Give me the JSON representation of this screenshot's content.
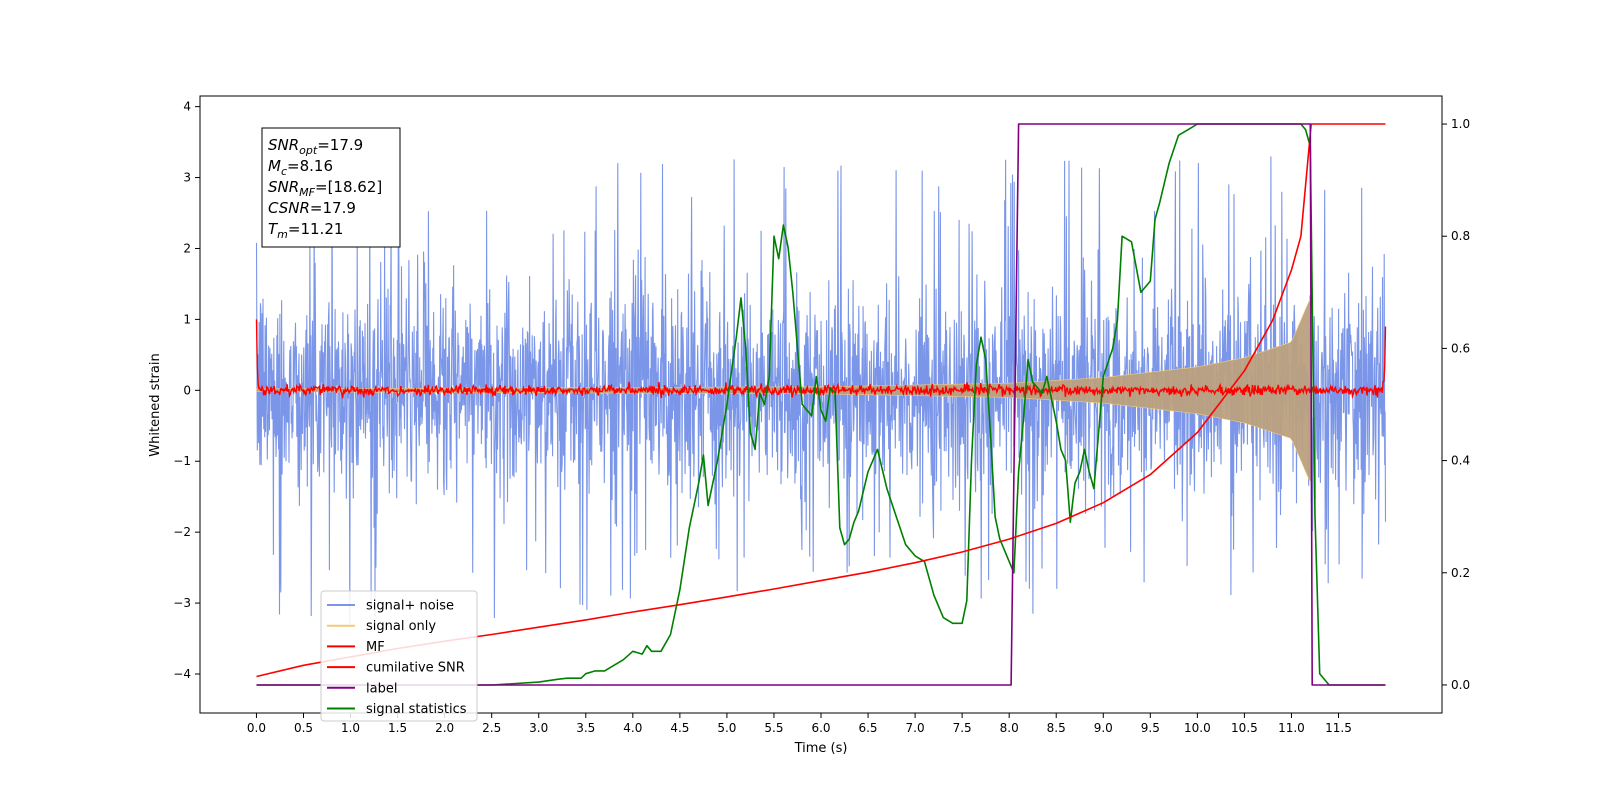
{
  "chart_data": {
    "type": "line",
    "xlabel": "Time (s)",
    "ylabel": "Whitened strain",
    "xlim": [
      -0.6,
      12.6
    ],
    "ylim": [
      -4.55,
      4.15
    ],
    "y2lim": [
      -0.05,
      1.05
    ],
    "xticks": [
      0.0,
      0.5,
      1.0,
      1.5,
      2.0,
      2.5,
      3.0,
      3.5,
      4.0,
      4.5,
      5.0,
      5.5,
      6.0,
      6.5,
      7.0,
      7.5,
      8.0,
      8.5,
      9.0,
      9.5,
      10.0,
      10.5,
      11.0,
      11.5
    ],
    "xtick_labels": [
      "0.0",
      "0.5",
      "1.0",
      "1.5",
      "2.0",
      "2.5",
      "3.0",
      "3.5",
      "4.0",
      "4.5",
      "5.0",
      "5.5",
      "6.0",
      "6.5",
      "7.0",
      "7.5",
      "8.0",
      "8.5",
      "9.0",
      "9.5",
      "10.0",
      "10.5",
      "11.0",
      "11.5"
    ],
    "yticks": [
      -4,
      -3,
      -2,
      -1,
      0,
      1,
      2,
      3,
      4
    ],
    "ytick_labels": [
      "−4",
      "−3",
      "−2",
      "−1",
      "0",
      "1",
      "2",
      "3",
      "4"
    ],
    "y2ticks": [
      0.0,
      0.2,
      0.4,
      0.6,
      0.8,
      1.0
    ],
    "y2tick_labels": [
      "0.0",
      "0.2",
      "0.4",
      "0.6",
      "0.8",
      "1.0"
    ],
    "legend_position": "lower-left",
    "annotation": {
      "lines": [
        {
          "base": "SNR",
          "sub": "opt",
          "rest": "=17.9"
        },
        {
          "base": "M",
          "sub": "c",
          "rest": "=8.16"
        },
        {
          "base": "SNR",
          "sub": "MF",
          "rest": "=[18.62]"
        },
        {
          "base": "CSNR",
          "sub": "",
          "rest": "=17.9"
        },
        {
          "base": "T",
          "sub": "m",
          "rest": "=11.21"
        }
      ]
    },
    "series": [
      {
        "name": "signal+ noise",
        "color": "#7b96e8",
        "axis": "left",
        "kind": "noise",
        "x_range": [
          0.0,
          12.0
        ],
        "envelope": 1.8,
        "peak_range": [
          -4.2,
          3.3
        ]
      },
      {
        "name": "signal only",
        "color": "#f5c97a",
        "fill": "#bba07e",
        "axis": "left",
        "kind": "chirp",
        "x_range": [
          0.0,
          11.21
        ],
        "amplitude_points": [
          [
            0.0,
            0.02
          ],
          [
            6.0,
            0.05
          ],
          [
            8.0,
            0.1
          ],
          [
            9.0,
            0.18
          ],
          [
            10.0,
            0.33
          ],
          [
            10.5,
            0.46
          ],
          [
            11.0,
            0.68
          ],
          [
            11.2,
            1.3
          ]
        ]
      },
      {
        "name": "MF",
        "color": "#ff0000",
        "axis": "left",
        "kind": "mf",
        "x_range": [
          0.0,
          12.0
        ],
        "start_value": 1.0,
        "end_value": 0.9,
        "band": 0.08
      },
      {
        "name": "cumilative SNR",
        "color": "#ff0000",
        "axis": "right",
        "x": [
          0.0,
          0.5,
          1.0,
          1.5,
          2.0,
          2.5,
          3.0,
          3.5,
          4.0,
          4.5,
          5.0,
          5.5,
          6.0,
          6.5,
          7.0,
          7.5,
          8.0,
          8.5,
          9.0,
          9.5,
          10.0,
          10.5,
          10.8,
          11.0,
          11.1,
          11.21,
          12.0
        ],
        "y": [
          0.015,
          0.035,
          0.05,
          0.065,
          0.078,
          0.09,
          0.103,
          0.116,
          0.13,
          0.143,
          0.157,
          0.171,
          0.186,
          0.201,
          0.218,
          0.237,
          0.26,
          0.288,
          0.325,
          0.375,
          0.45,
          0.56,
          0.65,
          0.74,
          0.8,
          1.0,
          1.0
        ]
      },
      {
        "name": "label",
        "color": "#800080",
        "axis": "right",
        "x": [
          0.0,
          8.02,
          8.1,
          11.2,
          11.22,
          12.0
        ],
        "y": [
          0.0,
          0.0,
          1.0,
          1.0,
          0.0,
          0.0
        ]
      },
      {
        "name": "signal statistics",
        "color": "#008000",
        "axis": "right",
        "x": [
          0.0,
          2.5,
          3.0,
          3.2,
          3.3,
          3.45,
          3.5,
          3.6,
          3.7,
          3.8,
          3.9,
          4.0,
          4.1,
          4.15,
          4.2,
          4.3,
          4.4,
          4.5,
          4.6,
          4.7,
          4.75,
          4.8,
          4.9,
          5.0,
          5.05,
          5.1,
          5.15,
          5.2,
          5.25,
          5.3,
          5.35,
          5.4,
          5.45,
          5.5,
          5.55,
          5.6,
          5.65,
          5.7,
          5.8,
          5.9,
          5.95,
          6.0,
          6.05,
          6.1,
          6.15,
          6.2,
          6.25,
          6.3,
          6.35,
          6.4,
          6.5,
          6.55,
          6.6,
          6.7,
          6.8,
          6.9,
          7.0,
          7.1,
          7.2,
          7.3,
          7.4,
          7.5,
          7.55,
          7.6,
          7.65,
          7.7,
          7.75,
          7.8,
          7.85,
          7.9,
          8.0,
          8.05,
          8.1,
          8.15,
          8.2,
          8.25,
          8.3,
          8.35,
          8.4,
          8.45,
          8.5,
          8.55,
          8.6,
          8.65,
          8.7,
          8.75,
          8.8,
          8.85,
          8.9,
          8.95,
          9.0,
          9.1,
          9.15,
          9.2,
          9.3,
          9.4,
          9.5,
          9.55,
          9.6,
          9.7,
          9.8,
          9.9,
          10.0,
          10.1,
          10.2,
          10.3,
          11.0,
          11.1,
          11.15,
          11.2,
          11.25,
          11.3,
          11.4,
          11.5,
          11.6,
          11.7,
          11.8,
          11.9,
          12.0
        ],
        "y": [
          0.0,
          0.0,
          0.005,
          0.01,
          0.012,
          0.012,
          0.02,
          0.025,
          0.025,
          0.035,
          0.045,
          0.06,
          0.055,
          0.07,
          0.06,
          0.06,
          0.09,
          0.17,
          0.28,
          0.36,
          0.41,
          0.32,
          0.4,
          0.5,
          0.56,
          0.62,
          0.69,
          0.6,
          0.45,
          0.42,
          0.52,
          0.5,
          0.55,
          0.8,
          0.76,
          0.82,
          0.78,
          0.7,
          0.5,
          0.48,
          0.55,
          0.49,
          0.47,
          0.53,
          0.52,
          0.28,
          0.25,
          0.26,
          0.29,
          0.31,
          0.38,
          0.4,
          0.42,
          0.35,
          0.3,
          0.25,
          0.23,
          0.22,
          0.16,
          0.12,
          0.11,
          0.11,
          0.15,
          0.4,
          0.57,
          0.62,
          0.58,
          0.45,
          0.3,
          0.26,
          0.22,
          0.2,
          0.38,
          0.47,
          0.58,
          0.54,
          0.53,
          0.52,
          0.55,
          0.51,
          0.47,
          0.42,
          0.4,
          0.29,
          0.36,
          0.38,
          0.42,
          0.38,
          0.35,
          0.45,
          0.55,
          0.6,
          0.65,
          0.8,
          0.79,
          0.7,
          0.72,
          0.83,
          0.86,
          0.93,
          0.98,
          0.99,
          1.0,
          1.0,
          1.0,
          1.0,
          1.0,
          1.0,
          0.99,
          0.96,
          0.3,
          0.02,
          0.0,
          0.0,
          0.0,
          0.0,
          0.0,
          0.0,
          0.0
        ]
      }
    ]
  }
}
